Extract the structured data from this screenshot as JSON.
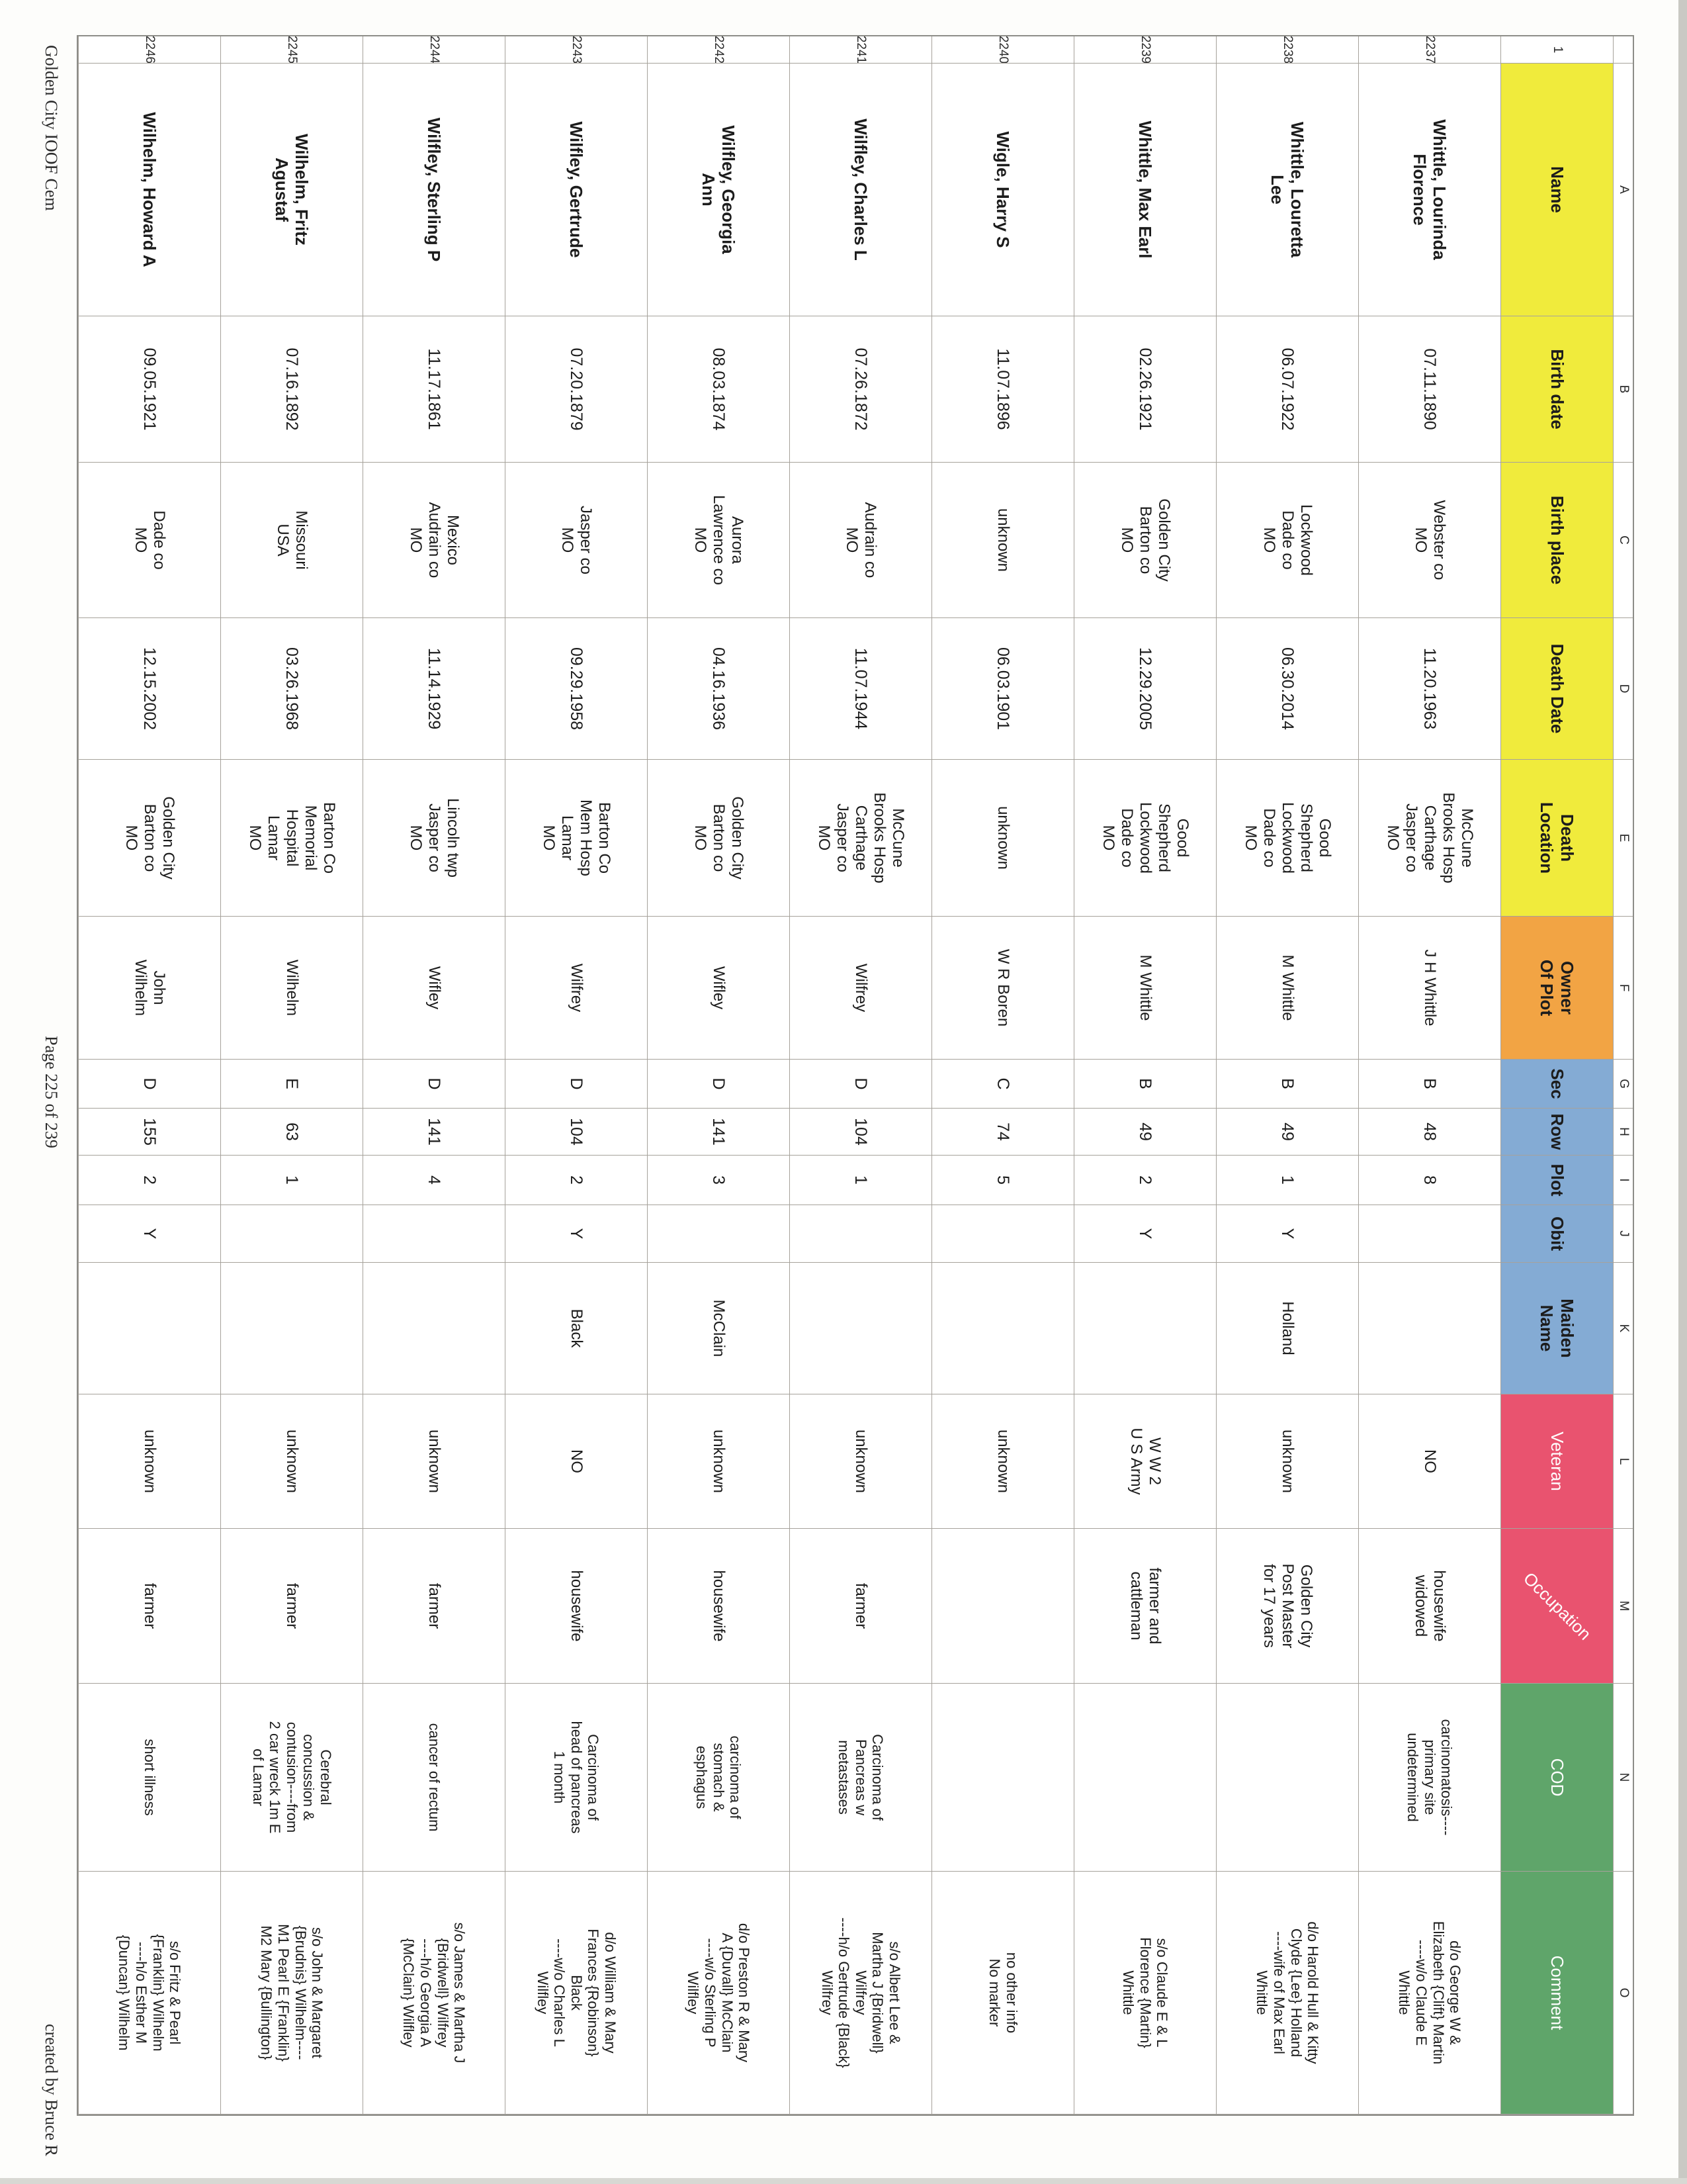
{
  "page": {
    "footer_left": "Golden City IOOF Cem",
    "footer_center": "Page 225 of 239",
    "footer_right": "created by Bruce R"
  },
  "colors": {
    "yellow": "#f0eb3c",
    "orange": "#f2a444",
    "blue": "#84abd4",
    "pink": "#e9536f",
    "green": "#5fa56a"
  },
  "table": {
    "corner_row_label": "1",
    "columns": [
      {
        "letter": "A",
        "label": "Name",
        "color": "yellow",
        "label_color": "black"
      },
      {
        "letter": "B",
        "label": "Birth date",
        "color": "yellow",
        "label_color": "black"
      },
      {
        "letter": "C",
        "label": "Birth place",
        "color": "yellow",
        "label_color": "black"
      },
      {
        "letter": "D",
        "label": "Death Date",
        "color": "yellow",
        "label_color": "black"
      },
      {
        "letter": "E",
        "label": "Death\nLocation",
        "color": "yellow",
        "label_color": "black"
      },
      {
        "letter": "F",
        "label": "Owner\nOf Plot",
        "color": "orange",
        "label_color": "black"
      },
      {
        "letter": "G",
        "label": "Sec",
        "color": "blue",
        "label_color": "black"
      },
      {
        "letter": "H",
        "label": "Row",
        "color": "blue",
        "label_color": "black"
      },
      {
        "letter": "I",
        "label": "Plot",
        "color": "blue",
        "label_color": "black"
      },
      {
        "letter": "J",
        "label": "Obit",
        "color": "blue",
        "label_color": "black"
      },
      {
        "letter": "K",
        "label": "Maiden\nName",
        "color": "blue",
        "label_color": "black"
      },
      {
        "letter": "L",
        "label": "Veteran",
        "color": "pink",
        "label_color": "white"
      },
      {
        "letter": "M",
        "label": "Occupation",
        "color": "pink",
        "label_color": "white"
      },
      {
        "letter": "N",
        "label": "COD",
        "color": "green",
        "label_color": "white"
      },
      {
        "letter": "O",
        "label": "Comment",
        "color": "green",
        "label_color": "white"
      }
    ],
    "records": [
      {
        "row_number": "2237",
        "name": "Whittle, Lourinda\nFlorence",
        "birth_date": "07.11.1890",
        "birth_place": "Webster co\nMO",
        "death_date": "11.20.1963",
        "death_location": "McCune\nBrooks Hosp\nCarthage\nJasper co\nMO",
        "owner_of_plot": "J H Whittle",
        "sec": "B",
        "row": "48",
        "plot": "8",
        "obit": "",
        "maiden_name": "",
        "veteran": "NO",
        "occupation": "housewife\nwidowed",
        "cod": "carcinomatosis----\nprimary site\nundetermined",
        "comment": "d/o George W &\nElizabeth {Clift} Martin\n----w/o Claude E\nWhittle"
      },
      {
        "row_number": "2238",
        "name": "Whittle, Louretta\nLee",
        "birth_date": "06.07.1922",
        "birth_place": "Lockwood\nDade co\nMO",
        "death_date": "06.30.2014",
        "death_location": "Good\nShepherd\nLockwood\nDade co\nMO",
        "owner_of_plot": "M Whittle",
        "sec": "B",
        "row": "49",
        "plot": "1",
        "obit": "Y",
        "maiden_name": "Holland",
        "veteran": "unknown",
        "occupation": "Golden City\nPost Master\nfor 17 years",
        "cod": "",
        "comment": "d/o Harold Hull & Kitty\nClyde {Lee} Holland\n----wife of Max Earl\nWhittle"
      },
      {
        "row_number": "2239",
        "name": "Whittle, Max Earl",
        "birth_date": "02.26.1921",
        "birth_place": "Golden City\nBarton co\nMO",
        "death_date": "12.29.2005",
        "death_location": "Good\nShepherd\nLockwood\nDade co\nMO",
        "owner_of_plot": "M Whittle",
        "sec": "B",
        "row": "49",
        "plot": "2",
        "obit": "Y",
        "maiden_name": "",
        "veteran": "W W 2\nU S Army",
        "occupation": "farmer and\ncattleman",
        "cod": "",
        "comment": "s/o Claude E & L\nFlorence {Martin}\nWhittle"
      },
      {
        "row_number": "2240",
        "name": "Wigle, Harry S",
        "birth_date": "11.07.1896",
        "birth_place": "unknown",
        "death_date": "06.03.1901",
        "death_location": "unknown",
        "owner_of_plot": "W R Boren",
        "sec": "C",
        "row": "74",
        "plot": "5",
        "obit": "",
        "maiden_name": "",
        "veteran": "unknown",
        "occupation": "",
        "cod": "",
        "comment": "no other info\nNo marker"
      },
      {
        "row_number": "2241",
        "name": "Wilfley, Charles L",
        "birth_date": "07.26.1872",
        "birth_place": "Audrain co\nMO",
        "death_date": "11.07.1944",
        "death_location": "McCune\nBrooks Hosp\nCarthage\nJasper co\nMO",
        "owner_of_plot": "Wilfrey",
        "sec": "D",
        "row": "104",
        "plot": "1",
        "obit": "",
        "maiden_name": "",
        "veteran": "unknown",
        "occupation": "farmer",
        "cod": "Carcinoma of\nPancreas w\nmetastases",
        "comment": "s/o Albert Lee &\nMartha J {Bridwell}\nWilfrey\n----h/o Gertrude {Black}\nWilfrey"
      },
      {
        "row_number": "2242",
        "name": "Wilfley, Georgia\nAnn",
        "birth_date": "08.03.1874",
        "birth_place": "Aurora\nLawrence co\nMO",
        "death_date": "04.16.1936",
        "death_location": "Golden City\nBarton co\nMO",
        "owner_of_plot": "Wifley",
        "sec": "D",
        "row": "141",
        "plot": "3",
        "obit": "",
        "maiden_name": "McClain",
        "veteran": "unknown",
        "occupation": "housewife",
        "cod": "carcinoma of\nstomach &\nesphagus",
        "comment": "d/o Preston R & Mary\nA {Duvall} McClain\n----w/o Sterling P\nWilfley"
      },
      {
        "row_number": "2243",
        "name": "Wilfley, Gertrude",
        "birth_date": "07.20.1879",
        "birth_place": "Jasper co\nMO",
        "death_date": "09.29.1958",
        "death_location": "Barton Co\nMem Hosp\nLamar\nMO",
        "owner_of_plot": "Wilfrey",
        "sec": "D",
        "row": "104",
        "plot": "2",
        "obit": "Y",
        "maiden_name": "Black",
        "veteran": "NO",
        "occupation": "housewife",
        "cod": "Carcinoma of\nhead of pancreas\n1 month",
        "comment": "d/o William & Mary\nFrances {Robinson}\nBlack\n----w/o Charles L\nWilfley"
      },
      {
        "row_number": "2244",
        "name": "Wilfley, Sterling P",
        "birth_date": "11.17.1861",
        "birth_place": "Mexico\nAudrain co\nMO",
        "death_date": "11.14.1929",
        "death_location": "Lincoln twp\nJasper co\nMO",
        "owner_of_plot": "Wifley",
        "sec": "D",
        "row": "141",
        "plot": "4",
        "obit": "",
        "maiden_name": "",
        "veteran": "unknown",
        "occupation": "farmer",
        "cod": "cancer of rectum",
        "comment": "s/o James & Martha J\n{Bridwell} Wilfrey\n----h/o Georgia A\n{McClain} Wilfley"
      },
      {
        "row_number": "2245",
        "name": "Wilhelm, Fritz\nAgustaf",
        "birth_date": "07.16.1892",
        "birth_place": "Missouri\nUSA",
        "death_date": "03.26.1968",
        "death_location": "Barton Co\nMemorial\nHospital\nLamar\nMO",
        "owner_of_plot": "Wilhelm",
        "sec": "E",
        "row": "63",
        "plot": "1",
        "obit": "",
        "maiden_name": "",
        "veteran": "unknown",
        "occupation": "farmer",
        "cod": "Cerebral\nconcussion &\ncontusion----from\n2 car wreck 1m E\nof Lamar",
        "comment": "s/o John & Margaret\n{Brudnis} Wilhelm----\nM1 Pearl E {Franklin}\nM2 Mary {Bullington}"
      },
      {
        "row_number": "2246",
        "name": "Wilhelm, Howard A",
        "birth_date": "09.05.1921",
        "birth_place": "Dade co\nMO",
        "death_date": "12.15.2002",
        "death_location": "Golden City\nBarton co\nMO",
        "owner_of_plot": "John\nWilhelm",
        "sec": "D",
        "row": "155",
        "plot": "2",
        "obit": "Y",
        "maiden_name": "",
        "veteran": "unknown",
        "occupation": "farmer",
        "cod": "short illness",
        "comment": "s/o Fritz & Pearl\n{Franklin} Wilhelm\n----h/o Esther M\n{Duncan} Wilhelm"
      }
    ]
  }
}
